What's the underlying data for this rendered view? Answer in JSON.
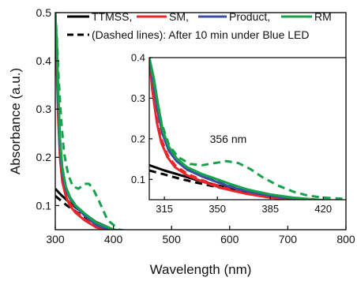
{
  "chart_data": [
    {
      "type": "line",
      "xlabel": "Wavelength (nm)",
      "ylabel": "Absorbance (a.u.)",
      "xlim": [
        300,
        800
      ],
      "ylim": [
        0.05,
        0.5
      ],
      "xticks": [
        300,
        400,
        500,
        600,
        700,
        800
      ],
      "yticks": [
        0.1,
        0.2,
        0.3,
        0.4,
        0.5
      ],
      "xtick_labels": [
        "300",
        "400",
        "500",
        "600",
        "700",
        "800"
      ],
      "ytick_labels": [
        "0.1",
        "0.2",
        "0.3",
        "0.4",
        "0.5"
      ],
      "grid": false,
      "legend": {
        "placement": "top",
        "entries": [
          {
            "label": "TTMSS,",
            "color": "#000000",
            "style": "solid"
          },
          {
            "label": "SM,",
            "color": "#e8262b",
            "style": "solid"
          },
          {
            "label": "Product,",
            "color": "#3a4fa3",
            "style": "solid"
          },
          {
            "label": "RM",
            "color": "#16a24a",
            "style": "solid"
          },
          {
            "label": "(Dashed lines): After 10 min under Blue LED",
            "color": "#000000",
            "style": "dashed"
          }
        ]
      },
      "series": [
        {
          "name": "TTMSS",
          "color": "#000000",
          "style": "solid",
          "x": [
            300,
            310,
            320,
            335,
            350,
            370,
            400,
            450,
            500,
            600,
            700,
            800
          ],
          "y": [
            0.135,
            0.122,
            0.111,
            0.096,
            0.083,
            0.066,
            0.05,
            0.043,
            0.04,
            0.038,
            0.036,
            0.035
          ]
        },
        {
          "name": "TTMSS",
          "color": "#000000",
          "style": "dashed",
          "x": [
            300,
            310,
            320,
            335,
            350,
            370,
            400,
            450,
            500,
            600,
            700,
            800
          ],
          "y": [
            0.12,
            0.11,
            0.1,
            0.088,
            0.077,
            0.062,
            0.048,
            0.042,
            0.039,
            0.037,
            0.035,
            0.034
          ]
        },
        {
          "name": "SM",
          "color": "#e8262b",
          "style": "solid",
          "x": [
            300,
            303,
            305,
            308,
            312,
            318,
            325,
            335,
            350,
            370,
            400,
            450,
            500,
            600,
            700,
            800
          ],
          "y": [
            0.5,
            0.37,
            0.28,
            0.2,
            0.15,
            0.12,
            0.1,
            0.085,
            0.07,
            0.055,
            0.045,
            0.04,
            0.038,
            0.036,
            0.035,
            0.035
          ]
        },
        {
          "name": "SM",
          "color": "#e8262b",
          "style": "dashed",
          "x": [
            300,
            303,
            305,
            308,
            312,
            318,
            325,
            335,
            350,
            370,
            400,
            450,
            500,
            600,
            700,
            800
          ],
          "y": [
            0.5,
            0.38,
            0.3,
            0.21,
            0.16,
            0.125,
            0.105,
            0.088,
            0.072,
            0.056,
            0.046,
            0.041,
            0.038,
            0.036,
            0.035,
            0.035
          ]
        },
        {
          "name": "Product",
          "color": "#3a4fa3",
          "style": "solid",
          "x": [
            300,
            303,
            305,
            308,
            312,
            318,
            325,
            335,
            350,
            370,
            400,
            450,
            500,
            600,
            700,
            800
          ],
          "y": [
            0.5,
            0.4,
            0.31,
            0.22,
            0.17,
            0.135,
            0.115,
            0.098,
            0.08,
            0.06,
            0.047,
            0.042,
            0.039,
            0.037,
            0.036,
            0.035
          ]
        },
        {
          "name": "Product",
          "color": "#3a4fa3",
          "style": "dashed",
          "x": [
            300,
            303,
            305,
            308,
            312,
            318,
            325,
            335,
            350,
            370,
            400,
            450,
            500,
            600,
            700,
            800
          ],
          "y": [
            0.5,
            0.41,
            0.32,
            0.23,
            0.175,
            0.14,
            0.118,
            0.1,
            0.082,
            0.062,
            0.048,
            0.042,
            0.039,
            0.037,
            0.036,
            0.035
          ]
        },
        {
          "name": "RM",
          "color": "#16a24a",
          "style": "solid",
          "x": [
            300,
            303,
            305,
            308,
            312,
            318,
            325,
            335,
            350,
            370,
            400,
            450,
            500,
            600,
            700,
            730,
            760,
            800
          ],
          "y": [
            0.5,
            0.43,
            0.34,
            0.24,
            0.18,
            0.14,
            0.118,
            0.1,
            0.084,
            0.065,
            0.05,
            0.043,
            0.04,
            0.038,
            0.037,
            0.042,
            0.036,
            0.036
          ]
        },
        {
          "name": "RM",
          "color": "#16a24a",
          "style": "dashed",
          "x": [
            300,
            303,
            306,
            310,
            315,
            322,
            330,
            340,
            350,
            358,
            365,
            375,
            390,
            410,
            450,
            500,
            600,
            700,
            730,
            760,
            800
          ],
          "y": [
            0.5,
            0.44,
            0.36,
            0.28,
            0.21,
            0.165,
            0.14,
            0.135,
            0.145,
            0.145,
            0.135,
            0.11,
            0.07,
            0.05,
            0.043,
            0.04,
            0.038,
            0.037,
            0.042,
            0.037,
            0.037
          ]
        }
      ]
    },
    {
      "type": "line",
      "xlim": [
        305,
        435
      ],
      "ylim": [
        0.05,
        0.4
      ],
      "xticks": [
        315,
        350,
        385,
        420
      ],
      "yticks": [
        0.1,
        0.2,
        0.3,
        0.4
      ],
      "xtick_labels": [
        "315",
        "350",
        "385",
        "420"
      ],
      "ytick_labels": [
        "0.1",
        "0.2",
        "0.3",
        "0.4"
      ],
      "grid": false,
      "annotations": [
        {
          "text": "356 nm",
          "x": 345,
          "y": 0.19
        }
      ],
      "series": [
        {
          "name": "TTMSS",
          "color": "#000000",
          "style": "solid",
          "x": [
            305,
            315,
            325,
            335,
            345,
            355,
            365,
            375,
            385,
            400,
            420,
            435
          ],
          "y": [
            0.135,
            0.122,
            0.111,
            0.1,
            0.09,
            0.081,
            0.072,
            0.064,
            0.057,
            0.05,
            0.045,
            0.043
          ]
        },
        {
          "name": "TTMSS",
          "color": "#000000",
          "style": "dashed",
          "x": [
            305,
            315,
            325,
            335,
            345,
            355,
            365,
            375,
            385,
            400,
            420,
            435
          ],
          "y": [
            0.122,
            0.112,
            0.102,
            0.093,
            0.085,
            0.077,
            0.069,
            0.062,
            0.056,
            0.05,
            0.045,
            0.043
          ]
        },
        {
          "name": "SM",
          "color": "#e8262b",
          "style": "solid",
          "x": [
            305,
            307,
            310,
            313,
            317,
            322,
            330,
            340,
            350,
            360,
            370,
            385,
            400,
            420,
            435
          ],
          "y": [
            0.4,
            0.32,
            0.24,
            0.19,
            0.155,
            0.13,
            0.11,
            0.095,
            0.082,
            0.072,
            0.064,
            0.055,
            0.05,
            0.046,
            0.045
          ]
        },
        {
          "name": "SM",
          "color": "#e8262b",
          "style": "dashed",
          "x": [
            305,
            307,
            310,
            313,
            317,
            322,
            330,
            340,
            350,
            360,
            370,
            385,
            400,
            420,
            435
          ],
          "y": [
            0.4,
            0.33,
            0.25,
            0.2,
            0.16,
            0.135,
            0.114,
            0.098,
            0.085,
            0.074,
            0.066,
            0.057,
            0.051,
            0.047,
            0.045
          ]
        },
        {
          "name": "Product",
          "color": "#3a4fa3",
          "style": "solid",
          "x": [
            305,
            308,
            311,
            314,
            318,
            323,
            330,
            340,
            350,
            360,
            370,
            385,
            400,
            420,
            435
          ],
          "y": [
            0.4,
            0.33,
            0.26,
            0.21,
            0.17,
            0.145,
            0.124,
            0.107,
            0.093,
            0.08,
            0.07,
            0.06,
            0.053,
            0.048,
            0.046
          ]
        },
        {
          "name": "Product",
          "color": "#3a4fa3",
          "style": "dashed",
          "x": [
            305,
            308,
            311,
            314,
            318,
            323,
            330,
            340,
            350,
            360,
            370,
            385,
            400,
            420,
            435
          ],
          "y": [
            0.4,
            0.34,
            0.27,
            0.215,
            0.175,
            0.148,
            0.127,
            0.109,
            0.095,
            0.082,
            0.072,
            0.061,
            0.054,
            0.048,
            0.046
          ]
        },
        {
          "name": "RM",
          "color": "#16a24a",
          "style": "solid",
          "x": [
            305,
            308,
            311,
            314,
            318,
            323,
            330,
            340,
            350,
            360,
            370,
            385,
            400,
            420,
            435
          ],
          "y": [
            0.4,
            0.35,
            0.28,
            0.22,
            0.18,
            0.152,
            0.13,
            0.113,
            0.1,
            0.087,
            0.075,
            0.063,
            0.055,
            0.049,
            0.047
          ]
        },
        {
          "name": "RM",
          "color": "#16a24a",
          "style": "dashed",
          "x": [
            305,
            309,
            313,
            318,
            324,
            332,
            340,
            348,
            356,
            364,
            372,
            380,
            390,
            400,
            410,
            420,
            435
          ],
          "y": [
            0.4,
            0.32,
            0.24,
            0.185,
            0.155,
            0.138,
            0.135,
            0.14,
            0.145,
            0.14,
            0.125,
            0.105,
            0.085,
            0.07,
            0.06,
            0.055,
            0.052
          ]
        }
      ]
    }
  ]
}
